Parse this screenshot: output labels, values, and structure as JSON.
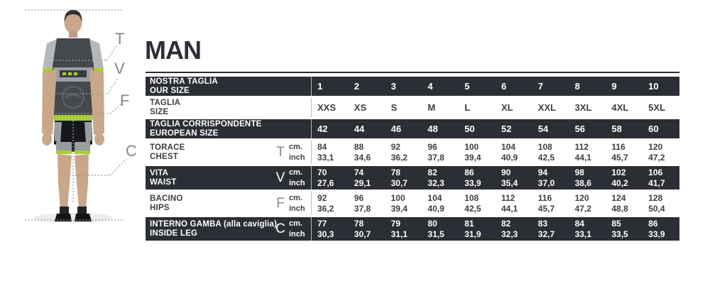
{
  "title": "MAN",
  "colors": {
    "dark_row_bg": "#2b2e34",
    "accent_green": "#a5cd35",
    "title_color": "#2b2e35",
    "light_row_text": "#3b3e43",
    "marker_gray": "#85888d"
  },
  "figure": {
    "markers": [
      {
        "label": "T"
      },
      {
        "label": "V"
      },
      {
        "label": "F"
      },
      {
        "label": "C"
      }
    ]
  },
  "table": {
    "size_rows": [
      {
        "label_primary": "NOSTRA TAGLIA",
        "label_secondary": "OUR SIZE",
        "dark": true,
        "values": [
          "1",
          "2",
          "3",
          "4",
          "5",
          "6",
          "7",
          "8",
          "9",
          "10"
        ]
      },
      {
        "label_primary": "TAGLIA",
        "label_secondary": "SIZE",
        "dark": false,
        "values": [
          "XXS",
          "XS",
          "S",
          "M",
          "L",
          "XL",
          "XXL",
          "3XL",
          "4XL",
          "5XL"
        ]
      },
      {
        "label_primary": "TAGLIA CORRISPONDENTE",
        "label_secondary": "EUROPEAN SIZE",
        "dark": true,
        "values": [
          "42",
          "44",
          "46",
          "48",
          "50",
          "52",
          "54",
          "56",
          "58",
          "60"
        ]
      }
    ],
    "measure_rows": [
      {
        "label_primary": "TORACE",
        "label_secondary": "CHEST",
        "letter": "T",
        "dark": false,
        "units": [
          "cm.",
          "inch"
        ],
        "cm": [
          "84",
          "88",
          "92",
          "96",
          "100",
          "104",
          "108",
          "112",
          "116",
          "120"
        ],
        "inch": [
          "33,1",
          "34,6",
          "36,2",
          "37,8",
          "39,4",
          "40,9",
          "42,5",
          "44,1",
          "45,7",
          "47,2"
        ]
      },
      {
        "label_primary": "VITA",
        "label_secondary": "WAIST",
        "letter": "V",
        "dark": true,
        "units": [
          "cm.",
          "inch"
        ],
        "cm": [
          "70",
          "74",
          "78",
          "82",
          "86",
          "90",
          "94",
          "98",
          "102",
          "106"
        ],
        "inch": [
          "27,6",
          "29,1",
          "30,7",
          "32,3",
          "33,9",
          "35,4",
          "37,0",
          "38,6",
          "40,2",
          "41,7"
        ]
      },
      {
        "label_primary": "BACINO",
        "label_secondary": "HIPS",
        "letter": "F",
        "dark": false,
        "units": [
          "cm.",
          "inch"
        ],
        "cm": [
          "92",
          "96",
          "100",
          "104",
          "108",
          "112",
          "116",
          "120",
          "124",
          "128"
        ],
        "inch": [
          "36,2",
          "37,8",
          "39,4",
          "40,9",
          "42,5",
          "44,1",
          "45,7",
          "47,2",
          "48,8",
          "50,4"
        ]
      },
      {
        "label_primary": "INTERNO GAMBA (alla caviglia)",
        "label_secondary": "INSIDE LEG",
        "letter": "C",
        "dark": true,
        "units": [
          "cm.",
          "inch"
        ],
        "cm": [
          "77",
          "78",
          "79",
          "80",
          "81",
          "82",
          "83",
          "84",
          "85",
          "86"
        ],
        "inch": [
          "30,3",
          "30,7",
          "31,1",
          "31,5",
          "31,9",
          "32,3",
          "32,7",
          "33,1",
          "33,5",
          "33,9"
        ]
      }
    ]
  }
}
